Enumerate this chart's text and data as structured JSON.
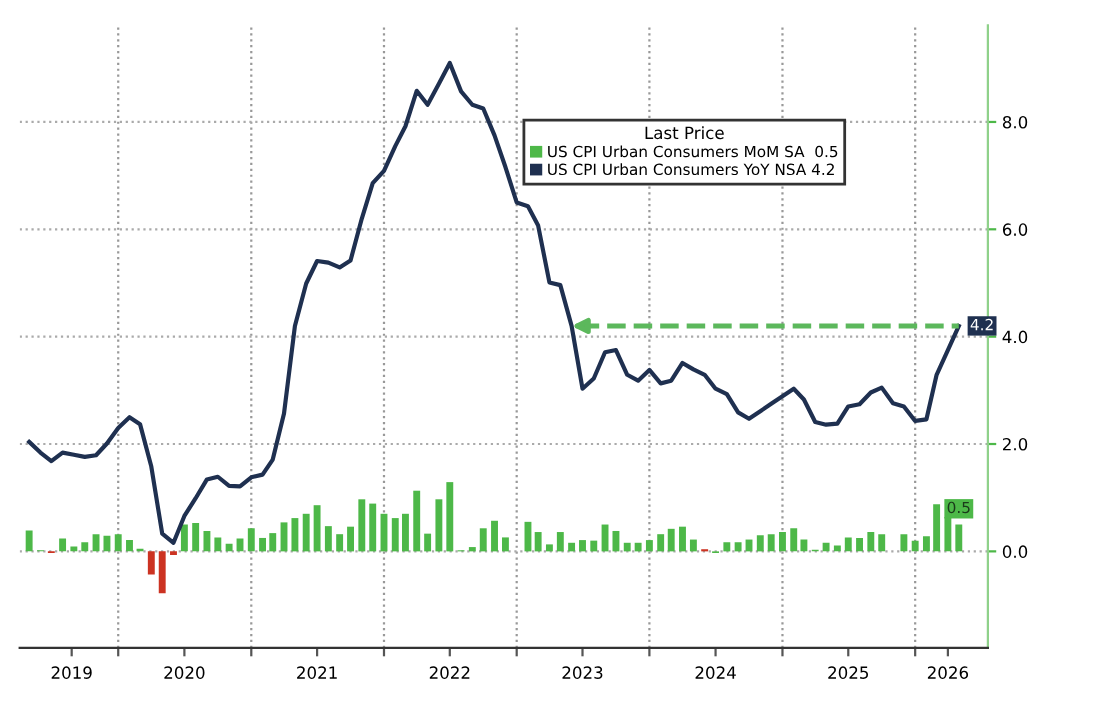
{
  "chart_data": {
    "type": "bar",
    "legend_title": "Last Price",
    "x": [
      "2019-05",
      "2019-06",
      "2019-07",
      "2019-08",
      "2019-09",
      "2019-10",
      "2019-11",
      "2019-12",
      "2020-01",
      "2020-02",
      "2020-03",
      "2020-04",
      "2020-05",
      "2020-06",
      "2020-07",
      "2020-08",
      "2020-09",
      "2020-10",
      "2020-11",
      "2020-12",
      "2021-01",
      "2021-02",
      "2021-03",
      "2021-04",
      "2021-05",
      "2021-06",
      "2021-07",
      "2021-08",
      "2021-09",
      "2021-10",
      "2021-11",
      "2021-12",
      "2022-01",
      "2022-02",
      "2022-03",
      "2022-04",
      "2022-05",
      "2022-06",
      "2022-07",
      "2022-08",
      "2022-09",
      "2022-10",
      "2022-11",
      "2022-12",
      "2023-01",
      "2023-02",
      "2023-03",
      "2023-04",
      "2023-05",
      "2023-06",
      "2023-07",
      "2023-08",
      "2023-09",
      "2023-10",
      "2023-11",
      "2023-12",
      "2024-01",
      "2024-02",
      "2024-03",
      "2024-04",
      "2024-05",
      "2024-06",
      "2024-07",
      "2024-08",
      "2024-09",
      "2024-10",
      "2024-11",
      "2024-12",
      "2025-01",
      "2025-02",
      "2025-03",
      "2025-04",
      "2025-05",
      "2025-06",
      "2025-07",
      "2025-08",
      "2025-09",
      "2025-10",
      "2025-11",
      "2025-12",
      "2026-01",
      "2026-02",
      "2026-03",
      "2026-04",
      "2026-05"
    ],
    "series": [
      {
        "name": "US CPI Urban Consumers MoM SA  0.5",
        "color": "#4db848",
        "colors": [
          "#4db848",
          "#4db848",
          "#cc3322",
          "#4db848",
          "#4db848",
          "#4db848",
          "#4db848",
          "#4db848",
          "#4db848",
          "#4db848",
          "#4db848",
          "#cc3322",
          "#cc3322",
          "#cc3322",
          "#4db848",
          "#4db848",
          "#4db848",
          "#4db848",
          "#4db848",
          "#4db848",
          "#4db848",
          "#4db848",
          "#4db848",
          "#4db848",
          "#4db848",
          "#4db848",
          "#4db848",
          "#4db848",
          "#4db848",
          "#4db848",
          "#4db848",
          "#4db848",
          "#4db848",
          "#4db848",
          "#4db848",
          "#4db848",
          "#4db848",
          "#4db848",
          "#4db848",
          "#4db848",
          "#4db848",
          "#4db848",
          "#4db848",
          "#4db848",
          "#4db848",
          "#4db848",
          "#4db848",
          "#4db848",
          "#4db848",
          "#4db848",
          "#4db848",
          "#4db848",
          "#4db848",
          "#4db848",
          "#4db848",
          "#4db848",
          "#4db848",
          "#4db848",
          "#4db848",
          "#4db848",
          "#4db848",
          "#cc3322",
          "#4db848",
          "#4db848",
          "#4db848",
          "#4db848",
          "#4db848",
          "#4db848",
          "#4db848",
          "#4db848",
          "#4db848",
          "#4db848",
          "#4db848",
          "#4db848",
          "#4db848",
          "#4db848",
          "#4db848",
          "#4db848",
          "#4db848",
          "#4db848",
          "#4db848",
          "#4db848",
          "#4db848",
          "#4db848",
          "#4db848"
        ],
        "values": [
          0.39,
          0.02,
          -0.03,
          0.24,
          0.09,
          0.17,
          0.32,
          0.29,
          0.32,
          0.21,
          0.05,
          -0.43,
          -0.78,
          -0.07,
          0.5,
          0.53,
          0.38,
          0.26,
          0.14,
          0.24,
          0.43,
          0.25,
          0.34,
          0.54,
          0.62,
          0.7,
          0.86,
          0.47,
          0.32,
          0.46,
          0.97,
          0.89,
          0.7,
          0.62,
          0.7,
          1.13,
          0.33,
          0.97,
          1.29,
          0.02,
          0.08,
          0.43,
          0.57,
          0.26,
          0.0,
          0.55,
          0.36,
          0.13,
          0.36,
          0.16,
          0.21,
          0.2,
          0.5,
          0.38,
          0.16,
          0.16,
          0.21,
          0.32,
          0.42,
          0.46,
          0.22,
          0.04,
          -0.03,
          0.17,
          0.17,
          0.22,
          0.3,
          0.32,
          0.36,
          0.43,
          0.22,
          0.03,
          0.16,
          0.11,
          0.26,
          0.25,
          0.36,
          0.32,
          0.0,
          0.32,
          0.2,
          0.28,
          0.88,
          0.64,
          0.5
        ],
        "value_labels": [
          null,
          null,
          null,
          null,
          null,
          null,
          null,
          null,
          null,
          null,
          null,
          null,
          null,
          null,
          null,
          null,
          null,
          null,
          null,
          null,
          null,
          null,
          null,
          null,
          null,
          null,
          null,
          null,
          null,
          null,
          null,
          null,
          null,
          null,
          null,
          null,
          null,
          null,
          null,
          null,
          null,
          null,
          null,
          null,
          null,
          null,
          null,
          null,
          null,
          null,
          null,
          null,
          null,
          null,
          null,
          null,
          null,
          null,
          null,
          null,
          null,
          null,
          null,
          null,
          null,
          null,
          null,
          null,
          null,
          null,
          null,
          null,
          null,
          null,
          null,
          null,
          null,
          null,
          null,
          null,
          null,
          null,
          null,
          null,
          "0.5"
        ]
      },
      {
        "name": "US CPI Urban Consumers YoY NSA 4.2",
        "type": "line",
        "color": "#1f3050",
        "values": [
          2.04,
          1.84,
          1.68,
          1.84,
          1.8,
          1.76,
          1.79,
          2.01,
          2.3,
          2.5,
          2.37,
          1.58,
          0.33,
          0.16,
          0.66,
          0.99,
          1.34,
          1.39,
          1.22,
          1.21,
          1.38,
          1.43,
          1.71,
          2.57,
          4.2,
          4.99,
          5.41,
          5.38,
          5.29,
          5.42,
          6.2,
          6.86,
          7.09,
          7.55,
          7.92,
          8.58,
          8.32,
          8.71,
          9.1,
          8.57,
          8.32,
          8.25,
          7.75,
          7.16,
          6.5,
          6.43,
          6.07,
          5.01,
          4.96,
          4.2,
          3.03,
          3.22,
          3.71,
          3.75,
          3.29,
          3.18,
          3.38,
          3.13,
          3.18,
          3.51,
          3.39,
          3.29,
          3.03,
          2.93,
          2.59,
          2.47,
          2.61,
          2.75,
          2.89,
          3.03,
          2.83,
          2.41,
          2.36,
          2.38,
          2.7,
          2.74,
          2.96,
          3.05,
          2.76,
          2.7,
          2.43,
          2.46,
          3.29,
          3.75,
          4.2
        ],
        "value_labels": [
          null,
          null,
          null,
          null,
          null,
          null,
          null,
          null,
          null,
          null,
          null,
          null,
          null,
          null,
          null,
          null,
          null,
          null,
          null,
          null,
          null,
          null,
          null,
          null,
          null,
          null,
          null,
          null,
          null,
          null,
          null,
          null,
          null,
          null,
          null,
          null,
          null,
          null,
          null,
          null,
          null,
          null,
          null,
          null,
          null,
          null,
          null,
          null,
          null,
          null,
          null,
          null,
          null,
          null,
          null,
          null,
          null,
          null,
          null,
          null,
          null,
          null,
          null,
          null,
          null,
          null,
          null,
          null,
          null,
          null,
          null,
          null,
          null,
          null,
          null,
          null,
          null,
          null,
          null,
          null,
          null,
          null,
          null,
          null,
          "4.2"
        ]
      }
    ],
    "ref_lines": [
      {
        "axis": "y",
        "value": 4.2,
        "color": "#5cb85c",
        "line_style": "dashed"
      }
    ],
    "xlim": [
      "2019-04-05",
      "2026-07-20"
    ],
    "xticks": [
      {
        "value": "2020-01-01",
        "label": null
      },
      {
        "value": "2021-01-01",
        "label": null
      },
      {
        "value": "2022-01-01",
        "label": null
      },
      {
        "value": "2023-01-01",
        "label": null
      },
      {
        "value": "2024-01-01",
        "label": null
      },
      {
        "value": "2025-01-01",
        "label": null
      },
      {
        "value": "2026-01-01",
        "label": null
      },
      {
        "value": "2019-08-26",
        "label": "2019"
      },
      {
        "value": "2020-07-01",
        "label": "2020"
      },
      {
        "value": "2021-07-01",
        "label": "2021"
      },
      {
        "value": "2022-07-01",
        "label": "2022"
      },
      {
        "value": "2023-07-01",
        "label": "2023"
      },
      {
        "value": "2024-07-01",
        "label": "2024"
      },
      {
        "value": "2025-07-01",
        "label": "2025"
      },
      {
        "value": "2026-04-01",
        "label": "2026"
      }
    ],
    "ylim": [
      -1.8,
      9.8
    ],
    "yticks": [
      {
        "value": 0,
        "label": "0.0"
      },
      {
        "value": 2,
        "label": "2.0"
      },
      {
        "value": 4,
        "label": "4.0"
      },
      {
        "value": 6,
        "label": "6.0"
      },
      {
        "value": 8,
        "label": "8.0"
      }
    ],
    "grid": true,
    "legend": "top right"
  }
}
